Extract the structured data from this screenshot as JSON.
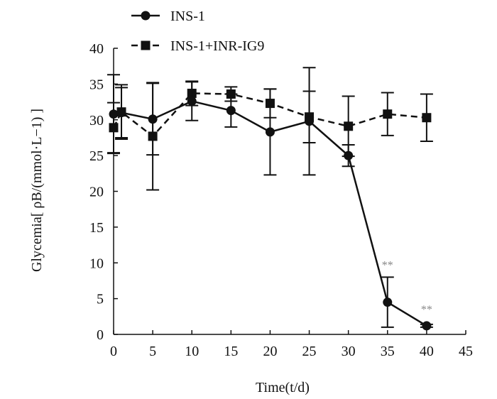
{
  "chart_data": {
    "type": "line",
    "title": "",
    "xlabel": "Time(t/d)",
    "ylabel": "Glycemia[ ρB/(mmol·L−1) ]",
    "xlim": [
      0,
      45
    ],
    "ylim": [
      0,
      40
    ],
    "xticks": [
      0,
      5,
      10,
      15,
      20,
      25,
      30,
      35,
      40,
      45
    ],
    "yticks": [
      0,
      5,
      10,
      15,
      20,
      25,
      30,
      35,
      40
    ],
    "grid": false,
    "legend_position": "top-left",
    "series": [
      {
        "name": "INS-1",
        "marker": "circle",
        "line_style": "solid",
        "color": "#111111",
        "x": [
          0,
          1,
          5,
          10,
          15,
          20,
          25,
          30,
          35,
          40
        ],
        "y": [
          30.8,
          31.0,
          30.1,
          32.6,
          31.3,
          28.3,
          29.8,
          25.0,
          4.5,
          1.2
        ],
        "error": [
          5.5,
          3.5,
          5.0,
          2.7,
          2.3,
          6.0,
          7.5,
          1.5,
          3.5,
          0.2
        ]
      },
      {
        "name": "INS-1+INR-IG9",
        "marker": "square",
        "line_style": "dashed",
        "color": "#111111",
        "x": [
          0,
          1,
          5,
          10,
          15,
          20,
          25,
          30,
          35,
          40
        ],
        "y": [
          28.9,
          31.1,
          27.7,
          33.7,
          33.6,
          32.3,
          30.4,
          29.1,
          30.8,
          30.3
        ],
        "error": [
          3.5,
          3.8,
          7.5,
          1.7,
          1.0,
          2.0,
          3.6,
          4.2,
          3.0,
          3.3
        ]
      }
    ],
    "annotations": [
      {
        "x": 35,
        "y": 9.2,
        "text": "**"
      },
      {
        "x": 40,
        "y": 3.0,
        "text": "**"
      }
    ]
  }
}
